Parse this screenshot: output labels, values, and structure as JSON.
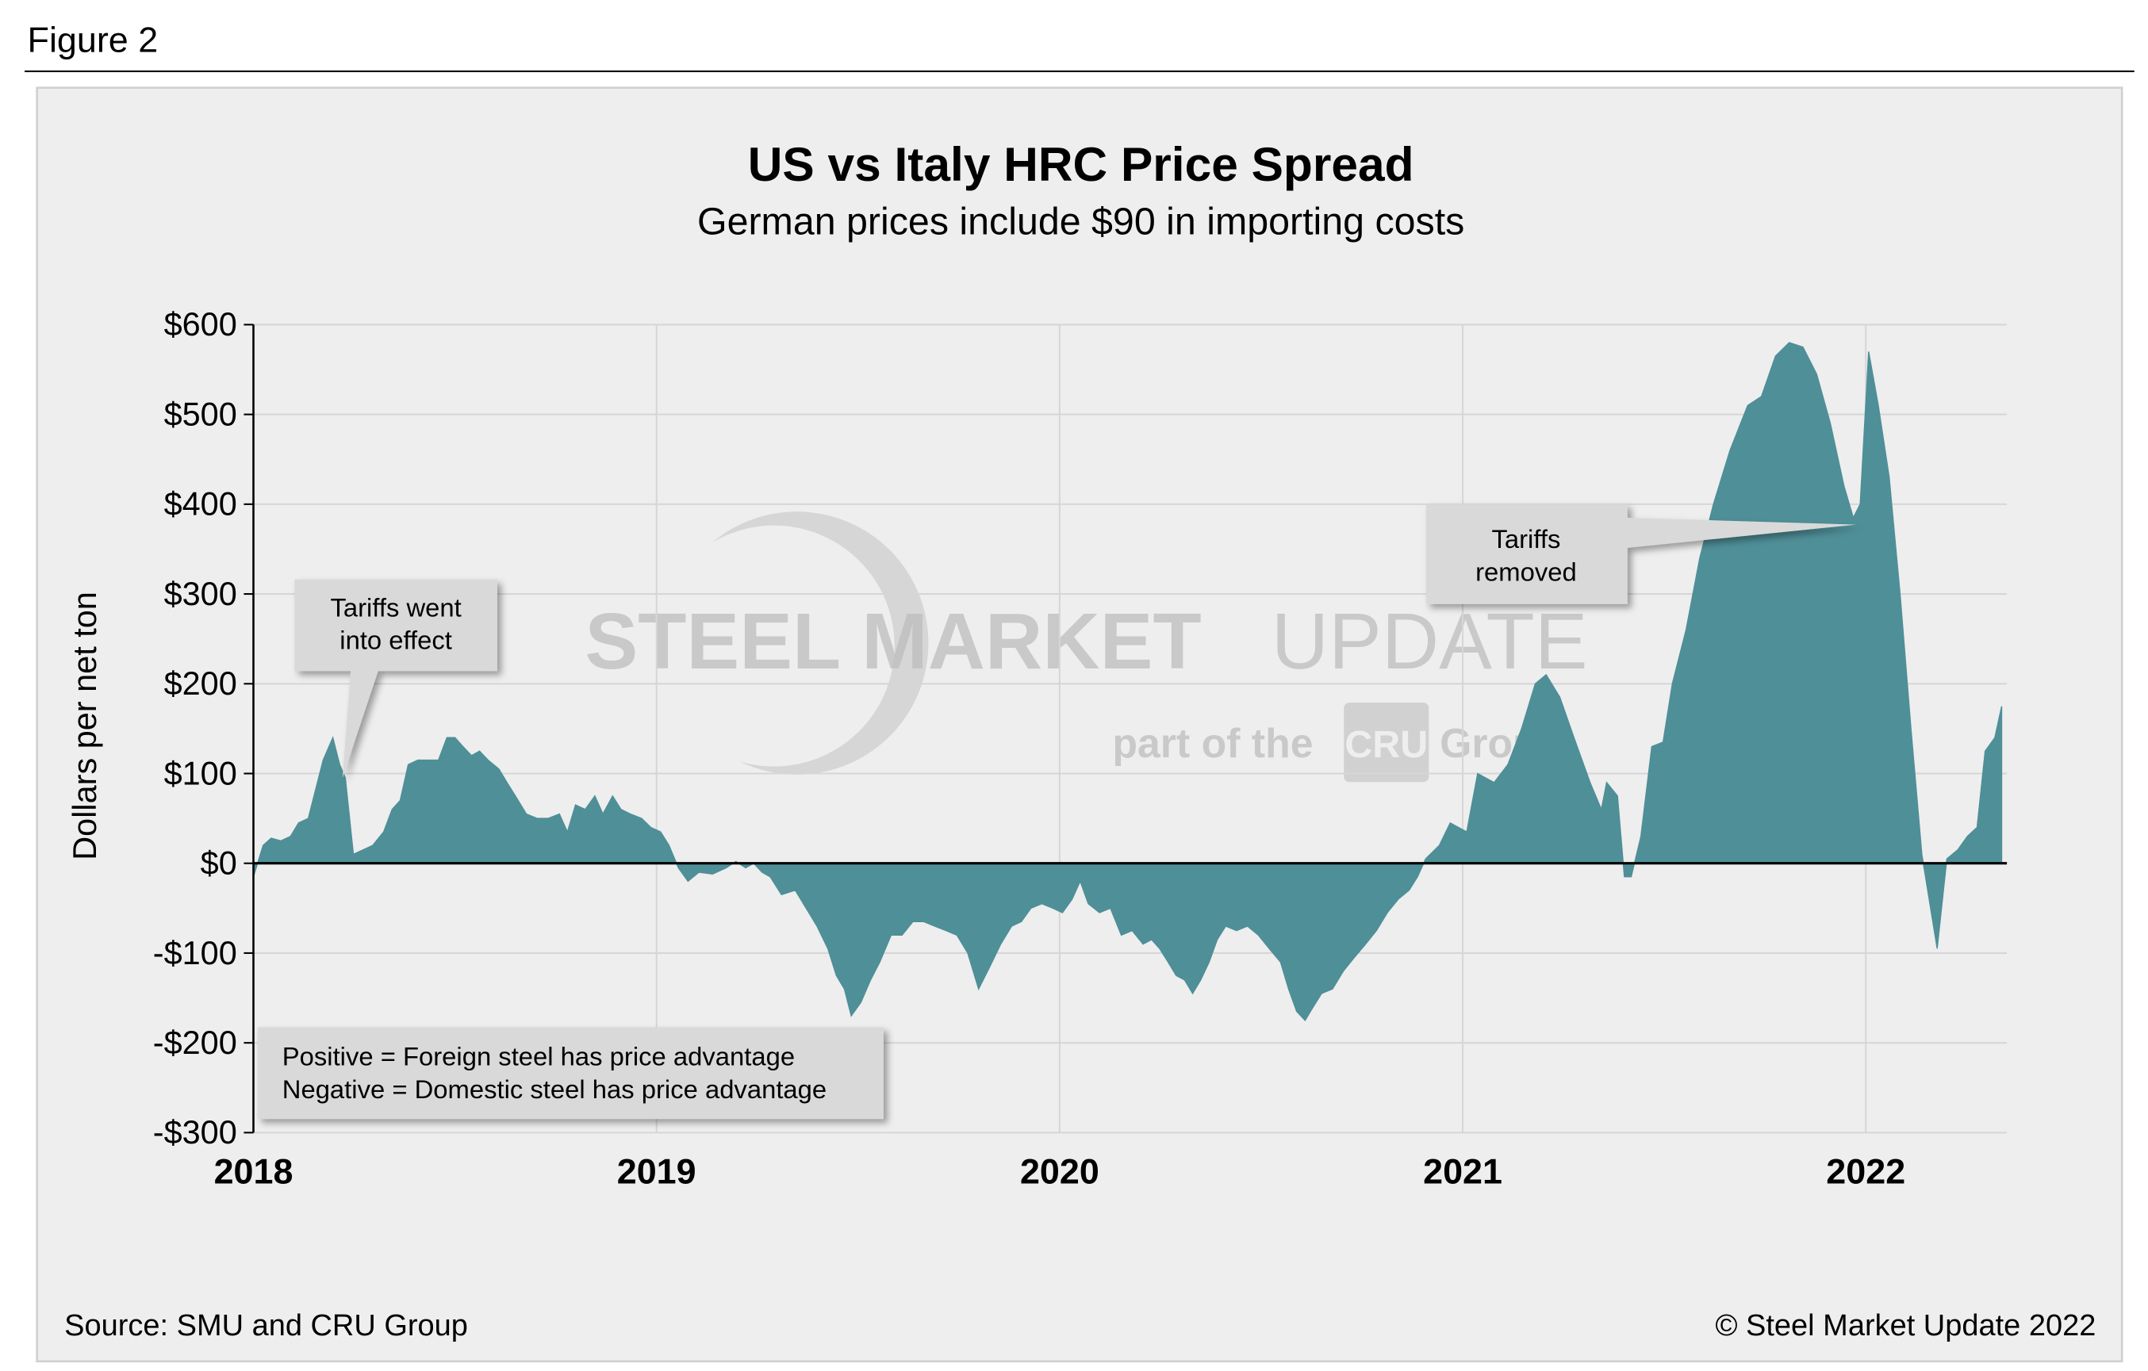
{
  "figure_label": "Figure 2",
  "chart_data": {
    "type": "area",
    "title": "US vs Italy HRC Price Spread",
    "subtitle": "German prices include $90 in importing costs",
    "y_label": "Dollars per net ton",
    "color": "#4f8f98",
    "grid": true,
    "xlim": [
      2018,
      2022.35
    ],
    "ylim": [
      -300,
      600
    ],
    "xticks": [
      2018,
      2019,
      2020,
      2021,
      2022
    ],
    "yticks": [
      {
        "value": 600,
        "label": "$600"
      },
      {
        "value": 500,
        "label": "$500"
      },
      {
        "value": 400,
        "label": "$400"
      },
      {
        "value": 300,
        "label": "$300"
      },
      {
        "value": 200,
        "label": "$200"
      },
      {
        "value": 100,
        "label": "$100"
      },
      {
        "value": 0,
        "label": "$0"
      },
      {
        "value": -100,
        "label": "-$100"
      },
      {
        "value": -200,
        "label": "-$200"
      },
      {
        "value": -300,
        "label": "-$300"
      }
    ],
    "x": [
      2018.0,
      2018.024,
      2018.044,
      2018.068,
      2018.092,
      2018.112,
      2018.136,
      2018.153,
      2018.173,
      2018.197,
      2018.214,
      2018.228,
      2018.248,
      2018.272,
      2018.296,
      2018.323,
      2018.344,
      2018.364,
      2018.384,
      2018.408,
      2018.432,
      2018.459,
      2018.48,
      2018.5,
      2018.52,
      2018.541,
      2018.561,
      2018.582,
      2018.609,
      2018.629,
      2018.65,
      2018.677,
      2018.704,
      2018.731,
      2018.759,
      2018.779,
      2018.799,
      2018.823,
      2018.847,
      2018.867,
      2018.891,
      2018.912,
      2018.935,
      2018.963,
      2018.986,
      2019.01,
      2019.031,
      2019.054,
      2019.078,
      2019.105,
      2019.139,
      2019.173,
      2019.197,
      2019.221,
      2019.241,
      2019.262,
      2019.282,
      2019.31,
      2019.344,
      2019.371,
      2019.398,
      2019.425,
      2019.446,
      2019.466,
      2019.483,
      2019.507,
      2019.531,
      2019.554,
      2019.582,
      2019.609,
      2019.636,
      2019.663,
      2019.69,
      2019.718,
      2019.745,
      2019.772,
      2019.799,
      2019.827,
      2019.854,
      2019.881,
      2019.905,
      2019.929,
      2019.956,
      2019.983,
      2020.007,
      2020.031,
      2020.051,
      2020.071,
      2020.099,
      2020.126,
      2020.153,
      2020.18,
      2020.207,
      2020.228,
      2020.248,
      2020.269,
      2020.289,
      2020.31,
      2020.33,
      2020.35,
      2020.371,
      2020.391,
      2020.412,
      2020.439,
      2020.466,
      2020.493,
      2020.52,
      2020.548,
      2020.568,
      2020.588,
      2020.609,
      2020.629,
      2020.65,
      2020.677,
      2020.704,
      2020.731,
      2020.759,
      2020.786,
      2020.813,
      2020.84,
      2020.867,
      2020.888,
      2020.908,
      2020.942,
      2020.969,
      2021.01,
      2021.037,
      2021.078,
      2021.112,
      2021.146,
      2021.18,
      2021.207,
      2021.241,
      2021.276,
      2021.316,
      2021.344,
      2021.357,
      2021.384,
      2021.401,
      2021.418,
      2021.442,
      2021.469,
      2021.497,
      2021.52,
      2021.554,
      2021.588,
      2021.622,
      2021.663,
      2021.707,
      2021.741,
      2021.776,
      2021.81,
      2021.844,
      2021.878,
      2021.912,
      2021.946,
      2021.969,
      2021.986,
      2022.007,
      2022.031,
      2022.058,
      2022.085,
      2022.112,
      2022.139,
      2022.177,
      2022.201,
      2022.228,
      2022.252,
      2022.276,
      2022.296,
      2022.32,
      2022.337
    ],
    "values": [
      -15,
      20,
      28,
      25,
      30,
      45,
      50,
      80,
      115,
      140,
      110,
      95,
      10,
      15,
      20,
      35,
      60,
      70,
      110,
      115,
      115,
      115,
      140,
      140,
      130,
      120,
      125,
      115,
      105,
      90,
      75,
      55,
      50,
      50,
      55,
      35,
      65,
      60,
      75,
      55,
      75,
      60,
      55,
      50,
      40,
      35,
      20,
      -5,
      -20,
      -10,
      -12,
      -5,
      2,
      -5,
      0,
      -10,
      -15,
      -35,
      -30,
      -50,
      -70,
      -95,
      -125,
      -140,
      -170,
      -155,
      -130,
      -110,
      -80,
      -80,
      -65,
      -65,
      -70,
      -75,
      -80,
      -100,
      -140,
      -115,
      -90,
      -70,
      -65,
      -50,
      -45,
      -50,
      -55,
      -40,
      -20,
      -45,
      -55,
      -50,
      -80,
      -75,
      -90,
      -85,
      -95,
      -110,
      -125,
      -130,
      -145,
      -130,
      -110,
      -85,
      -70,
      -75,
      -70,
      -80,
      -95,
      -110,
      -140,
      -165,
      -175,
      -160,
      -145,
      -140,
      -120,
      -105,
      -90,
      -75,
      -55,
      -40,
      -30,
      -15,
      5,
      20,
      45,
      35,
      100,
      90,
      110,
      150,
      200,
      210,
      185,
      140,
      90,
      60,
      90,
      75,
      -15,
      -15,
      30,
      130,
      135,
      200,
      260,
      340,
      400,
      460,
      510,
      520,
      565,
      580,
      575,
      545,
      490,
      420,
      385,
      400,
      570,
      510,
      430,
      300,
      150,
      10,
      -95,
      5,
      15,
      30,
      40,
      125,
      140,
      175
    ],
    "annotations": [
      {
        "lines": [
          "Tariffs went",
          "into effect"
        ]
      },
      {
        "lines": [
          "Tariffs",
          "removed"
        ]
      }
    ],
    "note": [
      "Positive = Foreign steel has price advantage",
      "Negative = Domestic steel has price advantage"
    ],
    "watermark": {
      "brand": "STEEL MARKET",
      "brand2": "UPDATE",
      "part": "part of the",
      "logo": "CRU",
      "group": "Group"
    }
  },
  "footer": {
    "source": "Source: SMU and CRU Group",
    "copyright": "© Steel Market Update 2022"
  }
}
